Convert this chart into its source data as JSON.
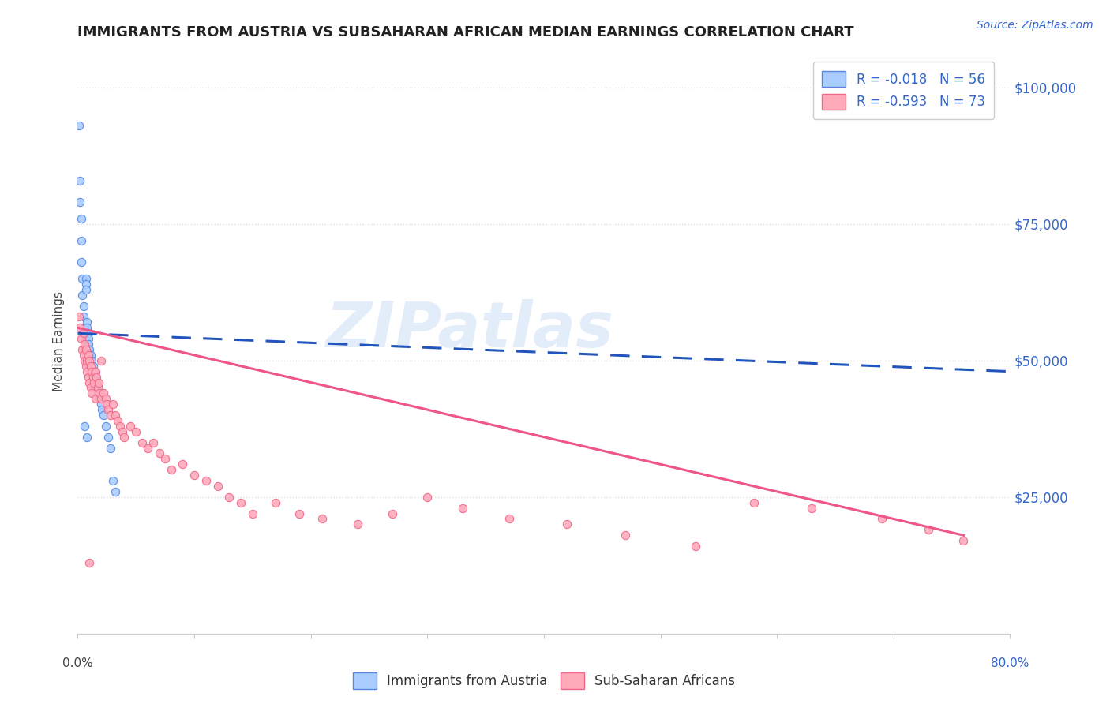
{
  "title": "IMMIGRANTS FROM AUSTRIA VS SUBSAHARAN AFRICAN MEDIAN EARNINGS CORRELATION CHART",
  "source": "Source: ZipAtlas.com",
  "ylabel": "Median Earnings",
  "legend_austria": "R = -0.018   N = 56",
  "legend_subsaharan": "R = -0.593   N = 73",
  "legend_bottom_austria": "Immigrants from Austria",
  "legend_bottom_subsaharan": "Sub-Saharan Africans",
  "austria_color_face": "#aaccff",
  "austria_color_edge": "#5588dd",
  "subsaharan_color_face": "#ffaabb",
  "subsaharan_color_edge": "#ee6688",
  "austria_line_color": "#2255bb",
  "subsaharan_line_color": "#ee5588",
  "watermark": "ZIPatlas",
  "xlim": [
    0,
    0.8
  ],
  "ylim": [
    0,
    107000
  ],
  "austria_x": [
    0.001,
    0.002,
    0.002,
    0.003,
    0.003,
    0.003,
    0.004,
    0.004,
    0.005,
    0.005,
    0.005,
    0.006,
    0.006,
    0.006,
    0.007,
    0.007,
    0.007,
    0.007,
    0.008,
    0.008,
    0.008,
    0.008,
    0.009,
    0.009,
    0.009,
    0.009,
    0.009,
    0.01,
    0.01,
    0.01,
    0.01,
    0.011,
    0.011,
    0.011,
    0.012,
    0.012,
    0.013,
    0.013,
    0.014,
    0.014,
    0.015,
    0.015,
    0.016,
    0.017,
    0.018,
    0.019,
    0.02,
    0.021,
    0.022,
    0.024,
    0.026,
    0.028,
    0.03,
    0.032,
    0.006,
    0.008
  ],
  "austria_y": [
    93000,
    83000,
    79000,
    76000,
    72000,
    68000,
    65000,
    62000,
    60000,
    58000,
    55000,
    56000,
    54000,
    52000,
    65000,
    64000,
    63000,
    55000,
    57000,
    56000,
    55000,
    53000,
    55000,
    54000,
    53000,
    52000,
    51000,
    52000,
    51000,
    50000,
    49000,
    51000,
    50000,
    49000,
    50000,
    48000,
    49000,
    47000,
    48000,
    46000,
    47000,
    45000,
    46000,
    44000,
    43000,
    43000,
    42000,
    41000,
    40000,
    38000,
    36000,
    34000,
    28000,
    26000,
    38000,
    36000
  ],
  "subsaharan_x": [
    0.001,
    0.002,
    0.003,
    0.004,
    0.005,
    0.005,
    0.006,
    0.006,
    0.007,
    0.007,
    0.008,
    0.008,
    0.009,
    0.009,
    0.01,
    0.01,
    0.011,
    0.011,
    0.012,
    0.012,
    0.013,
    0.014,
    0.015,
    0.015,
    0.016,
    0.017,
    0.018,
    0.019,
    0.02,
    0.02,
    0.022,
    0.024,
    0.025,
    0.026,
    0.028,
    0.03,
    0.032,
    0.034,
    0.036,
    0.038,
    0.04,
    0.045,
    0.05,
    0.055,
    0.06,
    0.065,
    0.07,
    0.075,
    0.08,
    0.09,
    0.1,
    0.11,
    0.12,
    0.13,
    0.14,
    0.15,
    0.17,
    0.19,
    0.21,
    0.24,
    0.27,
    0.3,
    0.33,
    0.37,
    0.42,
    0.47,
    0.53,
    0.58,
    0.63,
    0.69,
    0.73,
    0.76,
    0.01
  ],
  "subsaharan_y": [
    58000,
    56000,
    54000,
    52000,
    55000,
    51000,
    53000,
    50000,
    52000,
    49000,
    50000,
    48000,
    51000,
    47000,
    50000,
    46000,
    49000,
    45000,
    48000,
    44000,
    47000,
    46000,
    48000,
    43000,
    47000,
    45000,
    46000,
    44000,
    50000,
    43000,
    44000,
    43000,
    42000,
    41000,
    40000,
    42000,
    40000,
    39000,
    38000,
    37000,
    36000,
    38000,
    37000,
    35000,
    34000,
    35000,
    33000,
    32000,
    30000,
    31000,
    29000,
    28000,
    27000,
    25000,
    24000,
    22000,
    24000,
    22000,
    21000,
    20000,
    22000,
    25000,
    23000,
    21000,
    20000,
    18000,
    16000,
    24000,
    23000,
    21000,
    19000,
    17000,
    13000
  ],
  "austria_line_x": [
    0.0,
    0.8
  ],
  "austria_line_y": [
    55000,
    48000
  ],
  "subsaharan_line_x": [
    0.0,
    0.76
  ],
  "subsaharan_line_y": [
    56000,
    18000
  ],
  "right_yticks": [
    0,
    25000,
    50000,
    75000,
    100000
  ],
  "right_yticklabels": [
    "",
    "$25,000",
    "$50,000",
    "$75,000",
    "$100,000"
  ],
  "xticks": [
    0.0,
    0.1,
    0.2,
    0.3,
    0.4,
    0.5,
    0.6,
    0.7,
    0.8
  ],
  "grid_color": "#dddddd",
  "title_fontsize": 13,
  "axis_label_color": "#444444",
  "right_tick_color": "#3366cc",
  "source_color": "#3366cc"
}
